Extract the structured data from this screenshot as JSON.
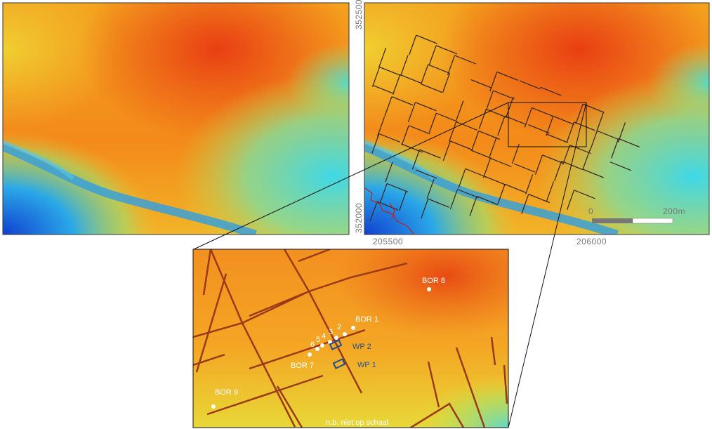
{
  "coordinates": {
    "y_labels": [
      "352500",
      "352000"
    ],
    "x_labels": [
      "205500",
      "206000"
    ]
  },
  "scale_bar": {
    "start": "0",
    "end": "200m"
  },
  "inset": {
    "points": [
      {
        "label": "BOR 1"
      },
      {
        "label": "2"
      },
      {
        "label": "3"
      },
      {
        "label": "4"
      },
      {
        "label": "5"
      },
      {
        "label": "6"
      },
      {
        "label": "BOR 7"
      },
      {
        "label": "BOR 8"
      },
      {
        "label": "BOR 9"
      }
    ],
    "trenches": [
      {
        "label": "WP 2"
      },
      {
        "label": "WP 1"
      }
    ],
    "note": "n.b. niet op schaal"
  }
}
